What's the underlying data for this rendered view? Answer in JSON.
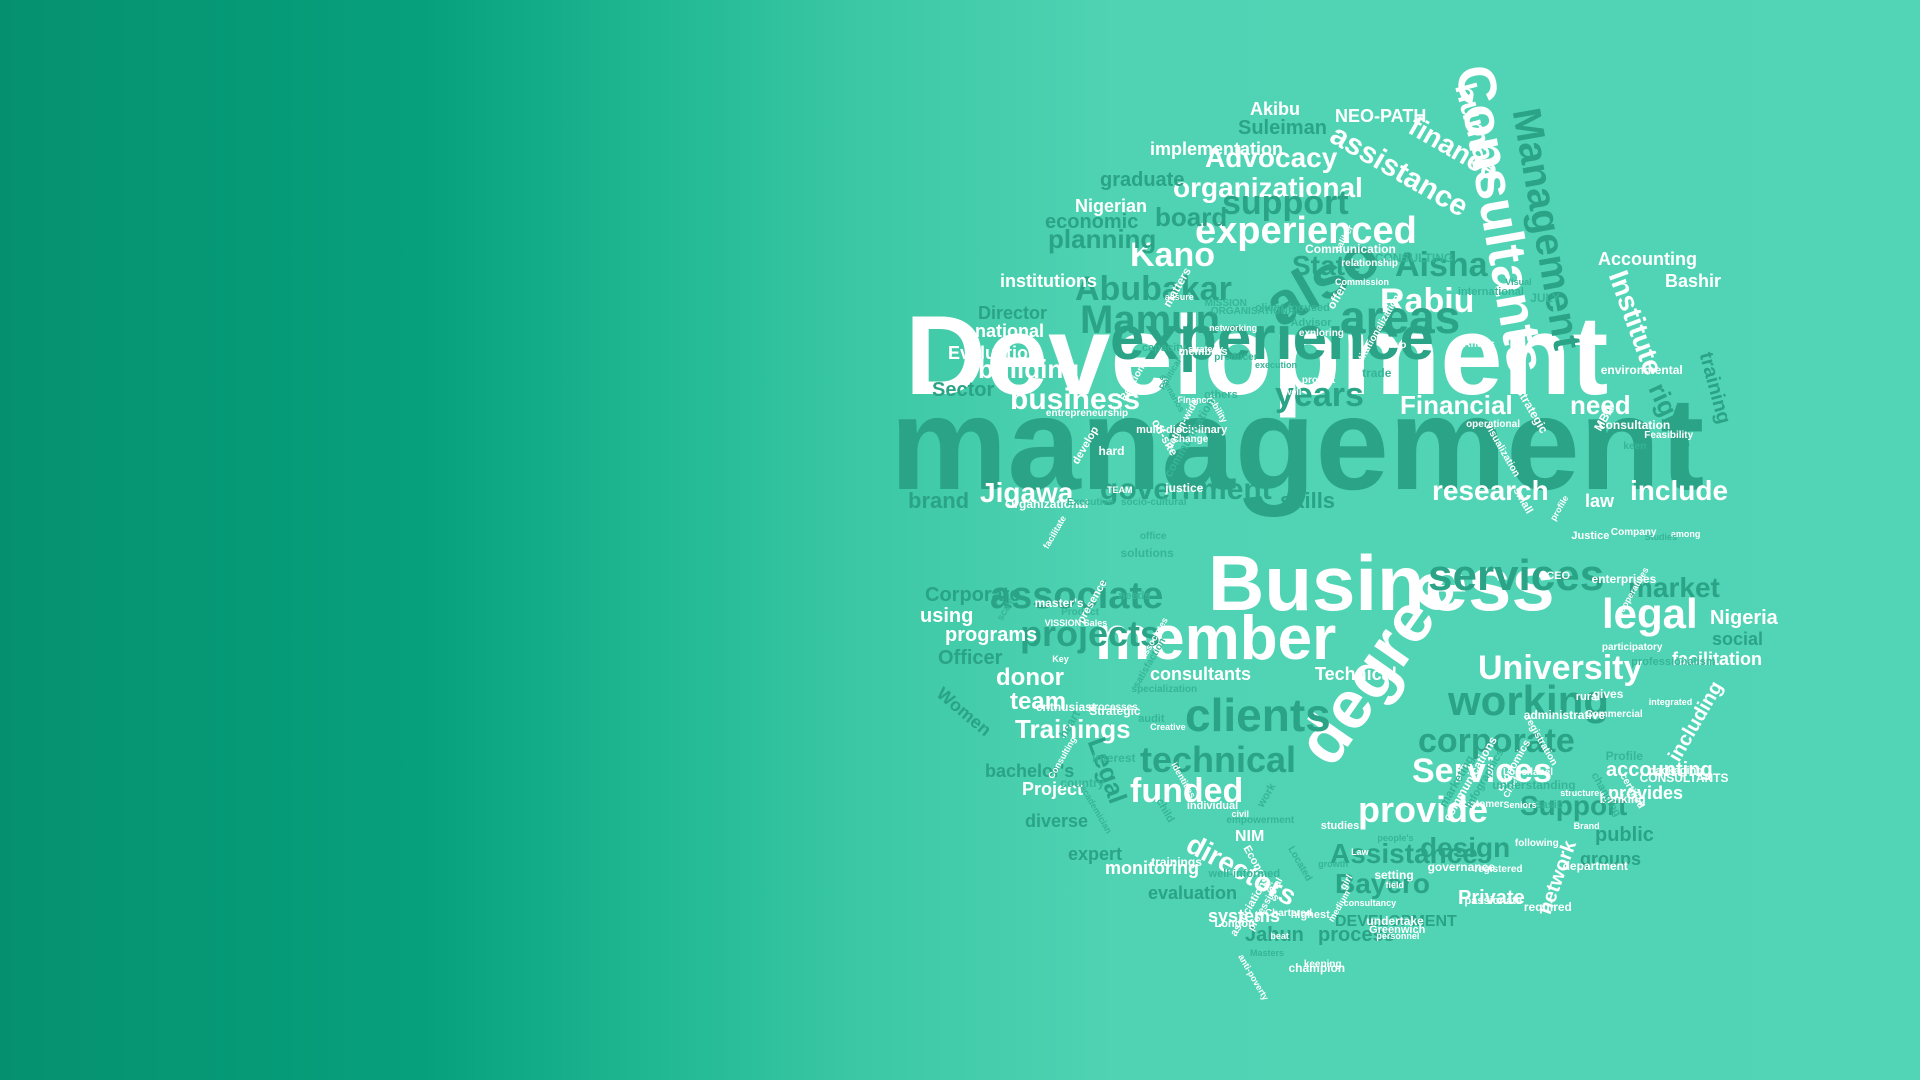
{
  "words": {
    "development": "Development",
    "management": "management",
    "business": "Business",
    "member": "member",
    "degree": "degree",
    "experience": "experience",
    "consultants": "Consultants",
    "management_v": "Management",
    "experienced": "experienced",
    "organizational": "organizational",
    "kano": "Kano",
    "rabiu": "Rabiu",
    "advocacy": "Advocacy",
    "abubakar": "Abubakar",
    "mamun": "Mamun",
    "also": "also",
    "areas": "areas",
    "years": "years",
    "financial": "Financial",
    "need": "need",
    "include": "include",
    "research": "research",
    "law": "law",
    "jigawa": "Jigawa",
    "government": "government",
    "skills": "skills",
    "brand": "brand",
    "services": "services",
    "market": "market",
    "legal": "legal",
    "nigeria": "Nigeria",
    "associate": "associate",
    "projects": "projects",
    "programs": "programs",
    "using": "using",
    "corporate": "Corporate",
    "university": "University",
    "working": "working",
    "corporate_l": "corporate",
    "services_cap": "Services",
    "provide": "provide",
    "funded": "funded",
    "clients": "clients",
    "technical": "technical",
    "trainings": "Trainings",
    "donor": "donor",
    "team": "team",
    "directors": "directors",
    "assistance": "Assistance",
    "bayero": "Bayero",
    "design": "design",
    "support_cap": "Support",
    "private": "Private",
    "monitoring": "monitoring",
    "evaluation_l": "evaluation",
    "systems": "systems",
    "process": "process",
    "jahun": "Jahun",
    "development_caps": "DEVELOPMENT",
    "business_l": "business",
    "building": "building",
    "evaluation": "Evaluation",
    "national": "national",
    "institutions": "institutions",
    "planning": "planning",
    "board": "board",
    "economic": "economic",
    "support": "support",
    "nigerian": "Nigerian",
    "graduate": "graduate",
    "implementation": "implementation",
    "akibu": "Akibu",
    "suleiman": "Suleiman",
    "neo_path": "NEO-PATH",
    "human": "human",
    "finance": "finance",
    "assistance_l": "assistance",
    "institute": "Institute",
    "accounting": "Accounting",
    "bashir": "Bashir",
    "state": "State",
    "aisha": "Aisha",
    "director": "Director",
    "sector": "Sector",
    "officer": "Officer",
    "facilitation": "facilitation",
    "social": "social",
    "accounting_l": "accounting",
    "provides": "provides",
    "public": "public",
    "groups": "groups",
    "consultants_l": "consultants",
    "technical_cap": "Technical",
    "project": "Project",
    "bachelors": "bachelor's",
    "expert": "expert",
    "diverse": "diverse",
    "nim": "NIM",
    "network": "network",
    "including": "including",
    "rights": "rights",
    "training": "training",
    "women": "Women",
    "legal_v": "Legal",
    "small_words": [
      "VISSION Sales",
      "needs",
      "beat",
      "Greenwich",
      "marketing",
      "Justice",
      "Located",
      "empowerment",
      "CONSULTANTS",
      "undertake",
      "Chief",
      "ORGANISATIONAL",
      "Product",
      "growth",
      "CONSULTING",
      "Commission",
      "individual",
      "keeping",
      "specialization",
      "hard",
      "studies",
      "matters",
      "administrative",
      "following",
      "Commercial",
      "economics",
      "structures",
      "enthusiast",
      "Finance",
      "registration",
      "Strategic",
      "audit",
      "consultation",
      "interest",
      "Organizational",
      "packaging",
      "relationship",
      "project",
      "liability",
      "work",
      "passionate",
      "MBA",
      "Consulting",
      "girl",
      "offer",
      "field",
      "operational",
      "personnel",
      "environmental",
      "Creative",
      "entrepreneurship",
      "required",
      "highest",
      "multi-disciplinary",
      "Basic",
      "facilitate",
      "keen",
      "satisfaction",
      "gives",
      "Relations",
      "Economists",
      "strategy",
      "associates",
      "heart",
      "JULY",
      "small",
      "child",
      "well",
      "rural",
      "profile",
      "civil",
      "London",
      "producer",
      "two",
      "visualization",
      "execution",
      "Institutionalization",
      "exploring",
      "office",
      "trade",
      "setting",
      "strategic",
      "develop",
      "identities",
      "off-site",
      "Political",
      "caliber",
      "anti-poverty",
      "nation-wide",
      "professionalism",
      "associations",
      "well-informed",
      "among",
      "professional",
      "Feasibility",
      "Visual",
      "client-focused",
      "international",
      "communication",
      "processes",
      "Law",
      "presence",
      "customer",
      "Profile",
      "master's",
      "consultancy",
      "others",
      "trainings",
      "Advisor",
      "CEO",
      "enterprises",
      "assure",
      "understanding",
      "Key",
      "Infographics",
      "change",
      "Executive",
      "Logo/label",
      "justice",
      "academician",
      "certified",
      "scenarios",
      "country",
      "banking",
      "Studies",
      "participatory",
      "TEAM",
      "capacity",
      "department",
      "socio-cultural",
      "solutions",
      "Affairs",
      "registered",
      "Communication",
      "communications",
      "Masters",
      "Chartered",
      "integrated",
      "networking",
      "medium",
      "Company",
      "champion",
      "Brand",
      "MISSION",
      "people's",
      "governance",
      "cooperatives",
      "members",
      "changing",
      "Seniors",
      "scale"
    ]
  }
}
